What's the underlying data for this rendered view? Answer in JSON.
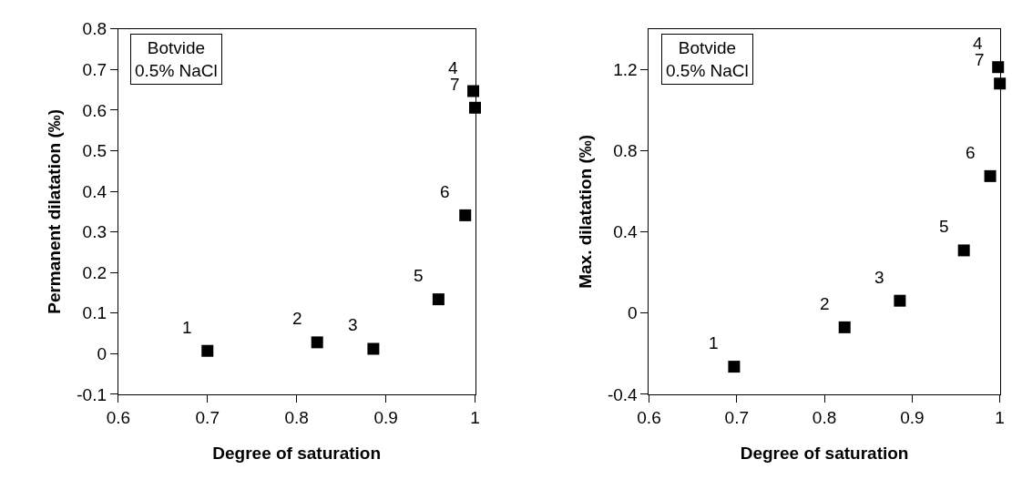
{
  "chart_data": [
    {
      "type": "scatter",
      "xlabel": "Degree of saturation",
      "ylabel": "Permanent dilatation (‰)",
      "x": [
        0.7,
        0.823,
        0.886,
        0.959,
        0.989,
        0.998,
        1.0
      ],
      "series": [
        {
          "color": "#000000",
          "values": [
            0.007,
            0.028,
            0.012,
            0.134,
            0.341,
            0.647,
            0.606
          ]
        }
      ],
      "xlim": [
        0.6,
        1
      ],
      "xticks": [
        0.6,
        0.7,
        0.8,
        0.9,
        1
      ],
      "ylim": [
        -0.1,
        0.8
      ],
      "yticks": [
        -0.1,
        0,
        0.1,
        0.2,
        0.3,
        0.4,
        0.5,
        0.6,
        0.7,
        0.8
      ],
      "marker": "square",
      "annotations": [
        "Botvide\n0.5% NaCl",
        {
          "text": "1",
          "x": 0.7,
          "y": 0.007
        },
        {
          "text": "2",
          "x": 0.823,
          "y": 0.028
        },
        {
          "text": "3",
          "x": 0.886,
          "y": 0.012
        },
        {
          "text": "5",
          "x": 0.959,
          "y": 0.134
        },
        {
          "text": "6",
          "x": 0.989,
          "y": 0.341
        },
        {
          "text": "4",
          "x": 0.998,
          "y": 0.647
        },
        {
          "text": "7",
          "x": 1.0,
          "y": 0.606
        }
      ]
    },
    {
      "type": "scatter",
      "xlabel": "Degree of saturation",
      "ylabel": "Max. dilatation (‰)",
      "x": [
        0.697,
        0.823,
        0.886,
        0.959,
        0.989,
        0.998,
        1.0
      ],
      "series": [
        {
          "color": "#000000",
          "values": [
            -0.264,
            -0.07,
            0.061,
            0.309,
            0.675,
            1.212,
            1.131
          ]
        }
      ],
      "xlim": [
        0.6,
        1
      ],
      "xticks": [
        0.6,
        0.7,
        0.8,
        0.9,
        1
      ],
      "ylim": [
        -0.4,
        1.4
      ],
      "yticks": [
        -0.4,
        0,
        0.4,
        0.8,
        1.2
      ],
      "marker": "square",
      "annotations": [
        "Botvide\n0.5% NaCl",
        {
          "text": "1",
          "x": 0.697,
          "y": -0.264
        },
        {
          "text": "2",
          "x": 0.823,
          "y": -0.07
        },
        {
          "text": "3",
          "x": 0.886,
          "y": 0.061
        },
        {
          "text": "5",
          "x": 0.959,
          "y": 0.309
        },
        {
          "text": "6",
          "x": 0.989,
          "y": 0.675
        },
        {
          "text": "4",
          "x": 0.998,
          "y": 1.212
        },
        {
          "text": "7",
          "x": 1.0,
          "y": 1.131
        }
      ]
    }
  ]
}
